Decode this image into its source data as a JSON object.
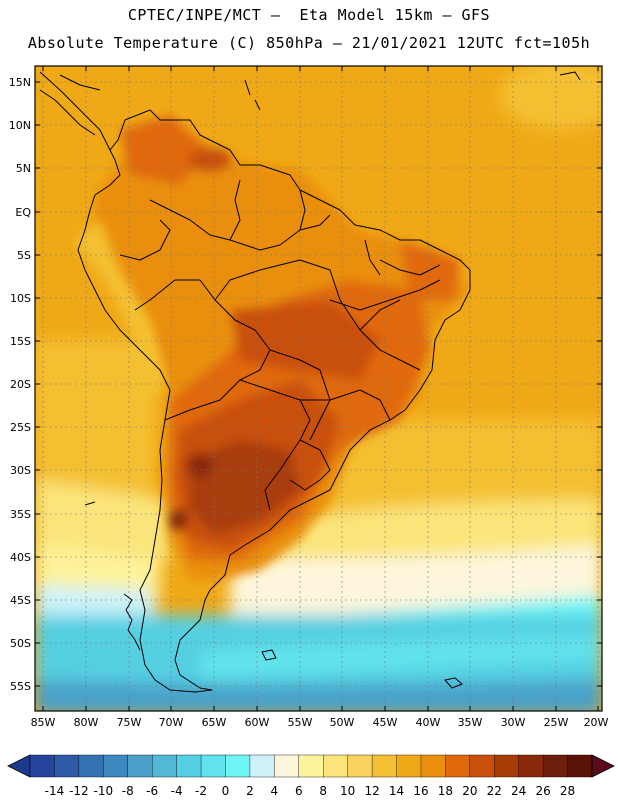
{
  "header": {
    "line1": "CPTEC/INPE/MCT –  Eta Model 15km – GFS",
    "line2": "Absolute Temperature (C) 850hPa – 21/01/2021 12UTC fct=105h"
  },
  "map": {
    "lat_labels": [
      "15N",
      "10N",
      "5N",
      "EQ",
      "5S",
      "10S",
      "15S",
      "20S",
      "25S",
      "30S",
      "35S",
      "40S",
      "45S",
      "50S",
      "55S"
    ],
    "lon_labels": [
      "85W",
      "80W",
      "75W",
      "70W",
      "65W",
      "60W",
      "55W",
      "50W",
      "45W",
      "40W",
      "35W",
      "30W",
      "25W",
      "20W"
    ]
  },
  "colorbar": {
    "ticks": [
      "-14",
      "-12",
      "-10",
      "-8",
      "-6",
      "-4",
      "-2",
      "0",
      "2",
      "4",
      "6",
      "8",
      "10",
      "12",
      "14",
      "16",
      "18",
      "20",
      "22",
      "24",
      "26",
      "28"
    ],
    "colors": [
      "#25449c",
      "#2e5aa6",
      "#3572b3",
      "#3d88be",
      "#4aa0c9",
      "#52b8d6",
      "#55cfe2",
      "#60e3ec",
      "#6ff5f5",
      "#cdf2f9",
      "#fdf6dc",
      "#fdf39b",
      "#fbe57a",
      "#f9d35d",
      "#f4c033",
      "#f0a916",
      "#ea8f10",
      "#e0690c",
      "#c9500a",
      "#a83c09",
      "#8a2a0a",
      "#6e1e0c",
      "#5a1108"
    ],
    "low_color": "#1e3a8c",
    "high_color": "#5a0a18"
  }
}
